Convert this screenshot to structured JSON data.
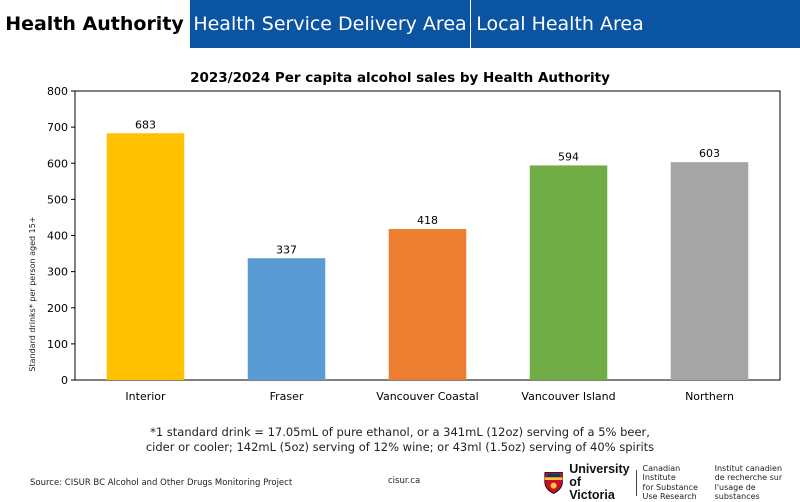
{
  "tabs": [
    {
      "label": "Health Authority",
      "active": true
    },
    {
      "label": "Health Service Delivery Area",
      "active": false
    },
    {
      "label": "Local Health Area",
      "active": false
    }
  ],
  "chart_data": {
    "type": "bar",
    "title": "2023/2024 Per capita alcohol sales by Health Authority",
    "ylabel": "Standard drinks* per person aged 15+",
    "xlabel": "",
    "categories": [
      "Interior",
      "Fraser",
      "Vancouver Coastal",
      "Vancouver Island",
      "Northern"
    ],
    "values": [
      683,
      337,
      418,
      594,
      603
    ],
    "colors": [
      "#ffc000",
      "#5b9bd5",
      "#ed7d31",
      "#70ad47",
      "#a5a5a5"
    ],
    "ylim": [
      0,
      800
    ],
    "yticks": [
      0,
      100,
      200,
      300,
      400,
      500,
      600,
      700,
      800
    ],
    "grid": false,
    "legend": "none"
  },
  "footnote": {
    "line1": "*1 standard drink = 17.05mL of pure ethanol, or a 341mL (12oz) serving of a 5% beer,",
    "line2": "cider or cooler; 142mL (5oz) serving of 12% wine; or 43ml (1.5oz) serving of 40% spirits"
  },
  "footer": {
    "source": "Source: CISUR BC Alcohol and Other Drugs Monitoring Project",
    "site": "cisur.ca",
    "university_line1": "University",
    "university_line2": "of Victoria",
    "institute_en_1": "Canadian Institute",
    "institute_en_2": "for Substance",
    "institute_en_3": "Use Research",
    "institute_fr_1": "Institut canadien",
    "institute_fr_2": "de recherche sur",
    "institute_fr_3": "l'usage de substances",
    "logo_icon": "uvic-shield-icon"
  }
}
